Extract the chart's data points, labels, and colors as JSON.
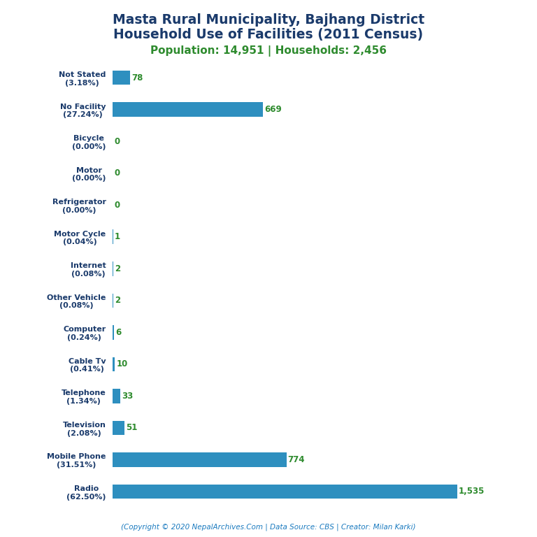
{
  "title_line1": "Masta Rural Municipality, Bajhang District",
  "title_line2": "Household Use of Facilities (2011 Census)",
  "subtitle": "Population: 14,951 | Households: 2,456",
  "footer": "(Copyright © 2020 NepalArchives.Com | Data Source: CBS | Creator: Milan Karki)",
  "title_color": "#1a3a6b",
  "subtitle_color": "#2e8b2e",
  "footer_color_link": "#1a7abf",
  "bar_color": "#2e8fbf",
  "value_color": "#2e8b2e",
  "label_color": "#1a3a6b",
  "categories": [
    "Radio\n(62.50%)",
    "Mobile Phone\n(31.51%)",
    "Television\n(2.08%)",
    "Telephone\n(1.34%)",
    "Cable Tv\n(0.41%)",
    "Computer\n(0.24%)",
    "Other Vehicle\n(0.08%)",
    "Internet\n(0.08%)",
    "Motor Cycle\n(0.04%)",
    "Refrigerator\n(0.00%)",
    "Motor\n(0.00%)",
    "Bicycle\n(0.00%)",
    "No Facility\n(27.24%)",
    "Not Stated\n(3.18%)"
  ],
  "values": [
    1535,
    774,
    51,
    33,
    10,
    6,
    2,
    2,
    1,
    0,
    0,
    0,
    669,
    78
  ],
  "background_color": "#ffffff",
  "xlim": [
    0,
    1700
  ],
  "title_fontsize": 13.5,
  "subtitle_fontsize": 11,
  "label_fontsize": 8.0,
  "value_fontsize": 8.5
}
